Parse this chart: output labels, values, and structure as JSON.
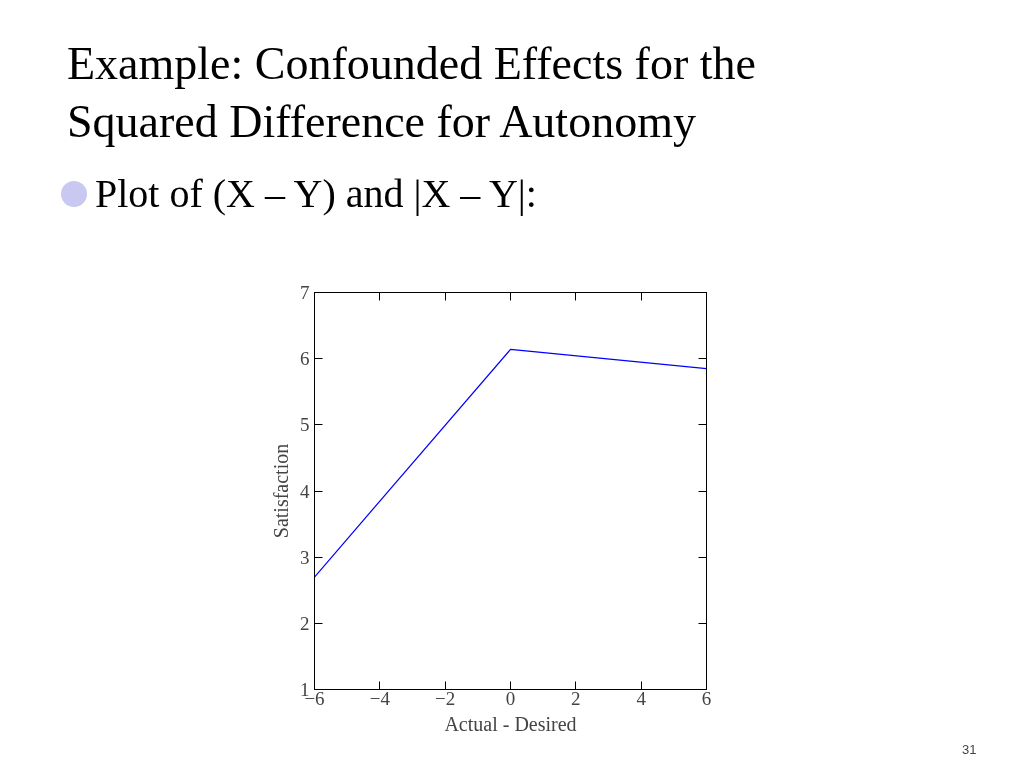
{
  "chart_data": {
    "type": "line",
    "title": "Example: Confounded Effects for the Squared Difference for Autonomy",
    "subtitle": "Plot of (X – Y) and |X – Y|:",
    "xlabel": "Actual - Desired",
    "ylabel": "Satisfaction",
    "x": [
      -6,
      0,
      6
    ],
    "series": [
      {
        "color": "#0000ff",
        "values": [
          2.7,
          6.14,
          5.85
        ]
      }
    ],
    "xlim": [
      -6,
      6
    ],
    "xticks": [
      -6,
      -4,
      -2,
      0,
      2,
      4,
      6
    ],
    "ylim": [
      1,
      7
    ],
    "yticks": [
      1,
      2,
      3,
      4,
      5,
      6,
      7
    ],
    "annotations": [
      "31"
    ]
  }
}
